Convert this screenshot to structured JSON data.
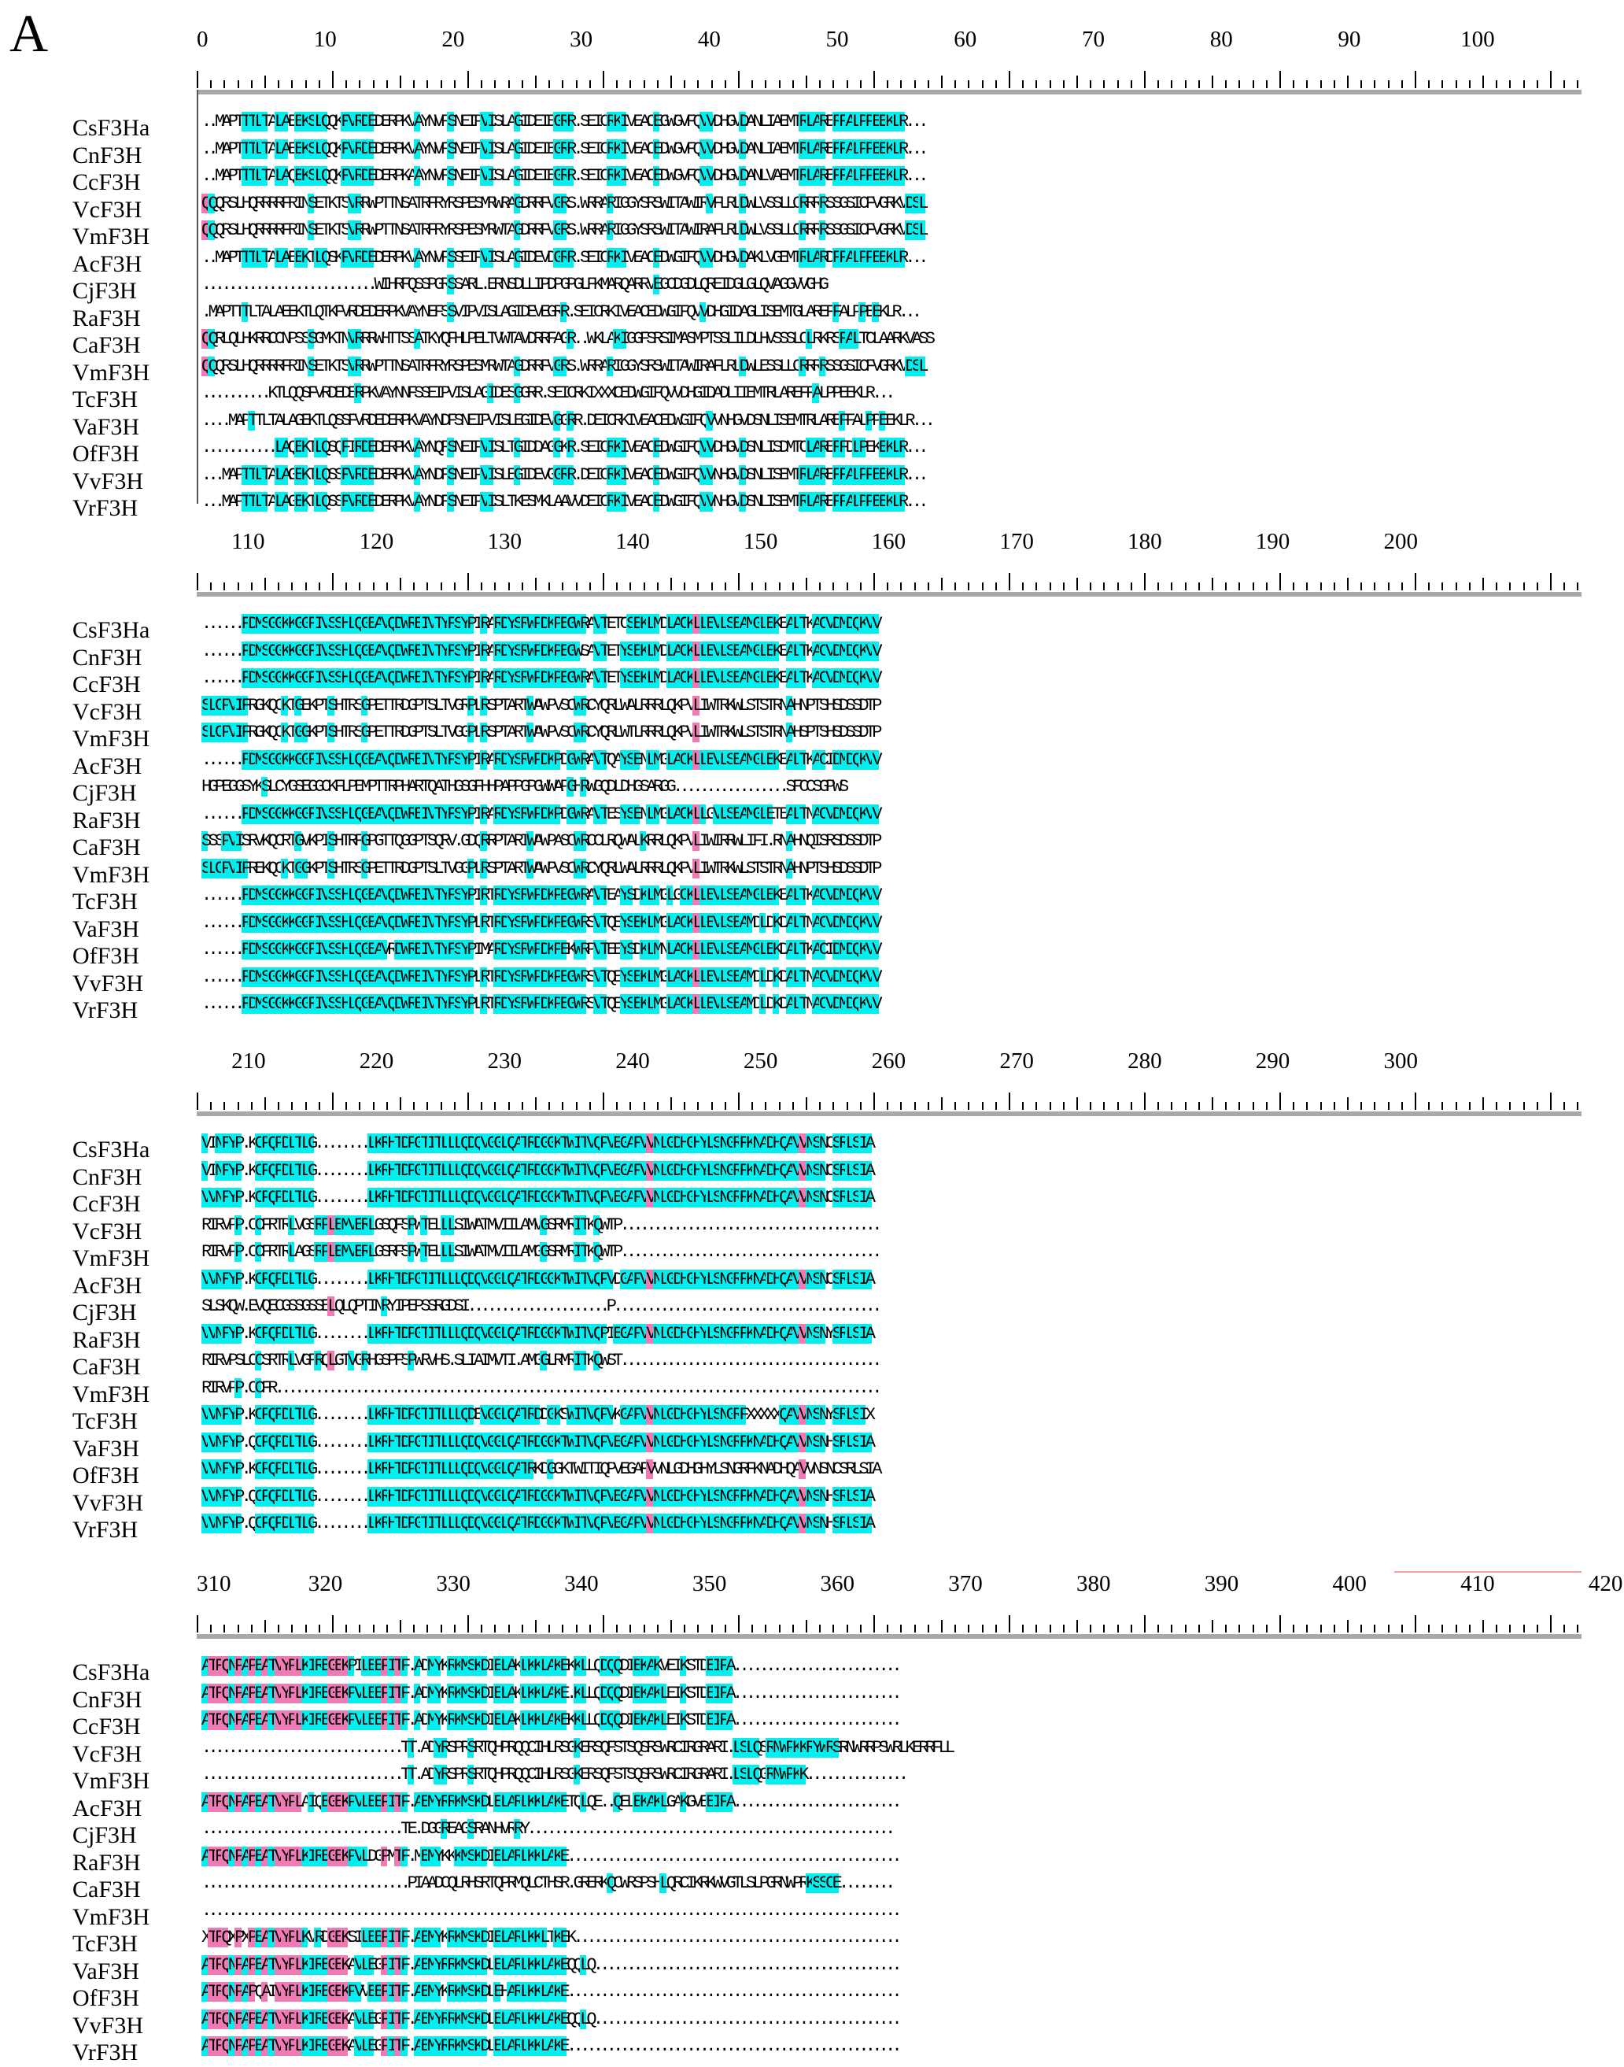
{
  "figure": {
    "panel_label": "A",
    "colors": {
      "identical": "#00f0f0",
      "similar": "#f07ab4",
      "ruler": "#000000"
    }
  },
  "blocks": [
    {
      "ruler_labels": [
        "0",
        "10",
        "20",
        "30",
        "40",
        "50",
        "60",
        "70",
        "80",
        "90",
        "100"
      ],
      "species": [
        "CsF3Ha",
        "CnF3H",
        "CcF3H",
        "VcF3H",
        "VmF3H",
        "AcF3H",
        "CjF3H",
        "RaF3H",
        "CaF3H",
        "VmF3H",
        "TcF3H",
        "VaF3H",
        "OfF3H",
        "VvF3H",
        "VrF3H"
      ],
      "sequences": [
        "..MAPTTTLTALAEEKSLQQKFVRDEDERPKVAYNVFSNEIPVISLAGIDEIEGRR.SEICRKIVEACEGWGVFQVVDHGVDANLIAEMTRLAREFFALPPEEKLR...",
        "..MAPTTTLTALAEEKSLQQKFVRDEDERPKVAYNVFSNEIPVISLAGIDEIEGRR.SEICRKIVEACEDWGVFQVVDHGVDANLIAEMTRLAREFFALPPEEKLR...",
        "..MAPTTTLTALAQEKSLQQKFVRDEDERPKAAYNVFSNEIPVISLAGIDEIEGRR.SEICRKIVEACEDWGVFQVVDHGVDANLVAEMTRLAREFFALPPEEKLR...",
        "QQQRSLHQRRRRFRINSETKTSVRRWPTTNSATRFRYRSPESMRWRAGDRRFVGRS.WRRARIGGYSRSWITAWIRVFLRLDWLVSSLLCRRRRSSGSICFVGRKVDSL",
        "QQQRSLHQRRRRFRINSETKTSVRRWPTTNSATRFRYRSPESMRWTAGDRRFVGRS.WRRARIGGYSRSWITAWIRAFLRLDWLVSSLLCRRRRSSGSICFVGRKVDSL",
        "..MAPTTTLTALAEEKTLQSKFVRDEDERPKVAYNVFSSEIPVISLAGIDEVDGRR.SEICRKIVEACEDWGIFQVVDHGVDAKLVGEMTRLARDFFALPPEEKLR...",
        "..........................WIHRFQSSPGRSSARL.ERNSDLLIPDPGPGLFKMARQARRVEGCDGDLQREIDGLGLQVAGGVVGHG",
        ".MAPTTTLTALAEEKTLQTKFVRDEDERPKVAYNEFSSVIPVISLAGIDEVEGRR.SEICRKIVEACEDWGIFQVVDHGIDAGLISEMTGLAREFFALPPEEKLR...",
        "QQRLQLHKRRCCNPSSSGMKTNVRRRWHTTSSATKYQFHLPELTVWTAVDRRFAGR..WKLAKIGGFSRSIMASMPTSSLILDLHVSSSLCLRKRSFALTCLAARKVASS",
        "QQQRSLHQRRRRFRINSETKTSVRRWPTTNSATRFRYRSPESMRWTAGDRRFVGRS.WRRARIGGYSRSWITAWIRAFLRLDWLESSLLCRRRRSSGSICFVGRKVDSL",
        "..........KTLQQSFVRDEDERPKVAYNNFSSEIPVISLAGIDESGGRR.SEICRKIXXXCEDWGIFQVVDHGIDADLIIEMTRLAREFFALPPEEKLR...",
        "....MAPTTLTALAGEKTLQSSFVRDEDERPKVAYNDFSNEIPVISLEGIDEVGGRR.DEICRKIVEACEDWGIFQVVNHGVDSNLISEMTRLAREFFALPPEEKLR...",
        "...........LAQEKTLQSQFIRDEDERPKVAYNQFSNEIPVISLTGIDDAGGKR.SEICRKIVEACEDWGIFQVVDHGVDSNLISDMTCLAREFFDLPEKEKLR...",
        "...MAPTTLTALAGEKTLQSSFVRDEDERPKVAYNDFSNEIPVISLEGIDEVGGRR.DEICRKIVEACEDWGIFQVVNHGVDSNLISEMTRLAREFFALPPEEKLR...",
        "...MAPTTLTALAGEKTLQSSFVRDEDERPKVAYNDFSNEIPVISLTKESMKLAAVVDEICRKIVEACEDWGIFQVVNHGVDSNLISEMTRLAREFFALPPEEKLR..."
      ]
    },
    {
      "ruler_labels": [
        "110",
        "120",
        "130",
        "140",
        "150",
        "160",
        "170",
        "180",
        "190",
        "200"
      ],
      "species": [
        "CsF3Ha",
        "CnF3H",
        "CcF3H",
        "VcF3H",
        "VmF3H",
        "AcF3H",
        "CjF3H",
        "RaF3H",
        "CaF3H",
        "VmF3H",
        "TcF3H",
        "VaF3H",
        "OfF3H",
        "VvF3H",
        "VrF3H"
      ],
      "sequences": [
        "......FDMSGGKKGGFIVSSHLQGEAVQDWREIVTYFSYPIRARDYSRWPDKPEGWRAVTETCSEKLMDLACKLLEVLSEAMGLEKEALTKACVDMDQKVV",
        "......FDMSGGKKGGFIVSSHLQGEAVQDWREIVTYFSYPIRARDYSRWPDKPEGWSAVTETYSEKLMDLACKLLEVLSEAMGLEKEALTKACVDMDQKVV",
        "......FDMSGGKKGGFIVSSHLQGEAVQDWREIVTYFSYPIRARDYSRWPDKPEGWRAVTETYSEKLMDLACKLLEVLSEAMGLEKEALTKACVDMDQKVV",
        "SLCPVIFRGKQCKTGEKPTSHTRSGPETTRDGPTSLTVGRPLRSPTARTWAWPVSCWRCYQRLWALRRRLQKPVLIWTRKWLSTSTRNAHNPTSHSDSSDTP",
        "SLCPVIFRGKQCKTGGKPTSHTRSGPETTRDGPTSLTVGGPLRSPTARTWAWPVSCWRCYQRLWTLRRRLQKPVLIWTRKWLSTSTRNAHSPTSHSDSSDTP",
        "......FDMSGGKKGGFIVSSHLQGEAVQDWREIVTYFSYPIRARDYSRWPDKPDGWRAVTQAYSENLMGLACKLLEVLSEAMGLEKEALTKACIDMDQKVV",
        "HGPEGGSYKSLCYGSEGGCKFLPEMPTTRPHARTQATHGSGFHHPAPPGPGWWAPGHRWGQDLDHGSARGG.................SFCCSGPWS",
        "......FDMSGGKKGGFIVSSHLQGEAVQDWREIVTYFSYPIRARDYSRWPDKPDGWRAVTESYSENLMGLACKLLGVLSEAMGLETEALTNACVDMDQKVV",
        "SSSPVISRVKQCRTGVKPISHTRFGPGTTQGGPTSQRV.GDQRRPTARIWAWPASCWRCCLRQWALKRRLQKPVLIWIRRWLIFI.RNAHNQISRSDSSDTP",
        "SLCPVIFREKQCKTGGKPTSHTRSGPETTRDGPTSLTVGGPLRSPTARTWAWPVSCWRCYQRLWALRRRLQKPVLIWTRKWLSTSTRNAHNPTSHSDSSDTP",
        "......FDMSGGKKGGFIVSSHLQGEAVQDWREIVTYFSYPIRTRDYSRWPDKPEGWRAVTEAYSDKLMGLGCKLLEVLSEAMGLEKEALTKACVDMDQKVV",
        "......FDMSGGKKGGFIVSSHLQGEAVQDWREIVTYFSYPLRTRDYSRWPDKPEGWRSVTQEYSEKLMGLACKLLEVLSEAMDLDKDALTNACVDMDQKVV",
        "......FDMSGGKKGGFIVSSHLQGEAVRDWREIVTYFSYPIMARDYSRWPDKPEKWRPVTEEYSDKLMNLACKLLEVLSEAMGLEKDALTKACIDMDQKVV",
        "......FDMSGGKKGGFIVSSHLQGEAVQDWREIVTYFSYPLRTRDYSRWPDKPEGWRSVTQEYSEKLMGLACKLLEVLSEAMDLDKDALTNACVDMDQKVV",
        "......FDMSGGKKGGFIVSSHLQGEAVQDWREIVTYFSYPLRTRDYSRWPDKPEGWRSVTQEYSEKLMGLACKLLEVLSEAMDLDKDALTNACVDMDQKVV"
      ]
    },
    {
      "ruler_labels": [
        "210",
        "220",
        "230",
        "240",
        "250",
        "260",
        "270",
        "280",
        "290",
        "300"
      ],
      "species": [
        "CsF3Ha",
        "CnF3H",
        "CcF3H",
        "VcF3H",
        "VmF3H",
        "AcF3H",
        "CjF3H",
        "RaF3H",
        "CaF3H",
        "VmF3H",
        "TcF3H",
        "VaF3H",
        "OfF3H",
        "VvF3H",
        "VrF3H"
      ],
      "sequences": [
        "VINFYP.KCPQPDLTLG........LKRHTDPGTITLLLQDQVGGLQATRDGGKTWITVQPVEGAFVVNLGDHGHYLSNGRFKNADHQAVVNSNCSRLSIA",
        "VINFYP.KCPQPDLTLG........LKRHTDPGTITLLLQDQVGGLQATRDGGKTWITVQPVEGAFVVNLGDHGHYLSNGRFKNADHQAVVNSNCSRLSIA",
        "VVNFYP.KCPQPDLTLG........LKRHTDPGTITLLLQDQVGGLQATRDGGKTWITVQPVEGAFVVNLGDHGHYLSNGRFKNADHQAVVNSNCSRLSIA",
        "RIRVPP.CCFRTRLVGSRPLEMVERLGSQFSPWTELLLSIWATMVIILAMVGSRMRITKQWTP.......................................",
        "RIRVPP.CCFRTRLAGSRPLEMVERLGSRFSPWTELLLSIWATMVIILAMGGSRMRITKQWTP.......................................",
        "VVNFYP.KCPQPDLTLG........LKRHTDPGTITLLLQDQVGGLQATRDGGKTWITVQPVDGAFVVNLGDHGHYLSNGRFKNADHQAVVNSNCSRLSIA",
        "SLSKQW.EVQECGSSGSSELQLQPTINRYIPEPSSRGDSI.....................P........................................",
        "VVNFYP.KCPQPDLTLG........LKRHTDPGTITLLLQDQVGGLQATRDGGKTWITVQPIEGAFVVNLGDHGHYLSNGRFKNADHQAVVNSNYSRLSIA",
        "RIRVPSLCCSRTRLVGFRQLGTVGRHGSPFSPWRVHS.SLIAIMVTI.AMGGLRMRITKQWST.......................................",
        "RIRVPP.CCFR...........................................................................................",
        "VVNFYP.KCPQPDLTLG........LKRHTDPGTITLLLQDEVGGLQATRDDGKSWITVQPVKGAFVVNLGDHGHYLSNGRFXXXXXQAVVNSNYSRLSIX",
        "VVNFYP.QCPQPDLTLG........LKRHTDPGTITLLLQDQVGGLQATRDGGKTWITVQPVEGAFVVNLGDHGHYLSNGRFKNADHQAVVNSNHSRLSIA",
        "VVNFYP.KCPQPDLTLG........LKRHTDPGTITLLLQDQVGGLQATRKDGGKTWITIQPVEGAFVVNLGDHGHYLSNGRFKNADHQAVVNSNCSRLSIA",
        "VVNFYP.QCPQPDLTLG........LKRHTDPGTITLLLQDQVGGLQATRDGGKTWITVQPVEGAFVVNLGDHGHYLSNGRFKNADHQAVVNSNHSRLSIA",
        "VVNFYP.QCPQPDLTLG........LKRHTDPGTITLLLQDQVGGLQATRDGGKTWITVQPVEGAFVVNLGDHGHYLSNGRFKNADHQAVVNSNHSRLSIA"
      ]
    },
    {
      "ruler_labels": [
        "310",
        "320",
        "330",
        "340",
        "350",
        "360",
        "370",
        "380",
        "390",
        "400",
        "410",
        "420"
      ],
      "species": [
        "CsF3Ha",
        "CnF3H",
        "CcF3H",
        "VcF3H",
        "VmF3H",
        "AcF3H",
        "CjF3H",
        "RaF3H",
        "CaF3H",
        "VmF3H",
        "TcF3H",
        "VaF3H",
        "OfF3H",
        "VvF3H",
        "VrF3H"
      ],
      "sequences": [
        "ATFQNPAPEATVYPLKIREGEKPILEEPITF.ADMYKRKMSKDIELAKLKKLAKEKKLLQDQQDIEKAKVEIKSTDEIFA.........................",
        "ATFQNPAPEATVYPLKIREGEKPVLEEPITF.ADMYKRKMSKDIELAKLKKLAKE.KLLQDQQDIEKAKLEIKSTDEIFA.........................",
        "ATFQNPAPEATVYPLKIREGEKPVLEEPITF.ADMYKRKMSKDIELAKLKKLAKEKKLLQDQQDIEKAKLEIKSTDEIFA.........................",
        "..............................TT.ADYRSPRSRTQHPRQQCIHLRSGKERSQFSTSQSRSWRCIRGRARI.LSLQSRNWPKKRYWRSRNWRRPSWRLKERRFLL",
        "..............................TT.ADYRSPRSRTQHPRQQCIHLRSGKERSQFSTSQSRSWRCIRGRARI.LSLQGRNWPKK...............",
        "ATFQNPAPEATVYPLAIQEGEKPVLEEPITF.AEMYRRKMSKDLELARLKKLAKETQLQE..QELEKAKLGAKGVEEIFA.........................",
        "..............................TE.DGGREAGSRANHVRRY.......................................................",
        "ATFQNPAPEATVYPLKIREGEKPVLDGPMTF.MEMYKKKMSKDIELARLKKLAKE..................................................",
        "...............................PIAADCQLRHSRTQPRMQLCTHSR.GRERKQCWRSPSHLQRCIKRKWVGTLSLPGRNWPRKSSCE........",
        ".........................................................................................................",
        "XTFQXPXPEATVYPLKVRDGEKSILEEPITF.AEMYKRKMSKDIELARLKKLTKEK.................................................",
        "ATFQNPAPEATVYPLKIREGEKAVLEGPITF.AEMYRRKMSKDLELARLKKLAKEQQLQ..............................................",
        "ATFQNPAPQAIVYPLKIREGEKPVVEEPITF.AEMYKRKMSKDLEHARLKKLAKE..................................................",
        "ATFQNPAPEATVYPLKIREGEKAVLEGPITF.AEMYRRKMSKDLELARLKKLAKEQQLQ..............................................",
        "ATFQNPAPEATVYPLKIREGEKAVLEGPITF.AEMYRRKMSKDLELARLKKLAKE.................................................."
      ]
    }
  ]
}
